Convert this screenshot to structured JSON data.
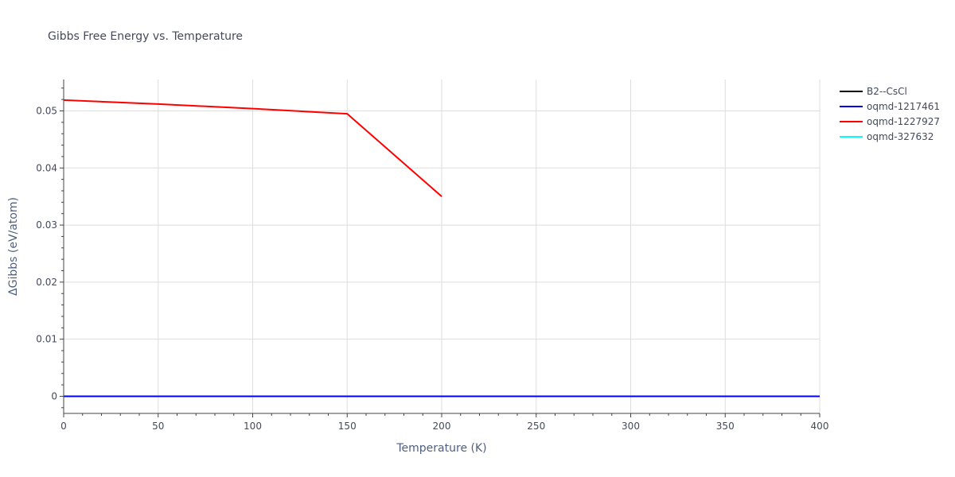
{
  "chart_data": {
    "type": "line",
    "title": "Gibbs Free Energy vs. Temperature",
    "xlabel": "Temperature (K)",
    "ylabel": "ΔGibbs (eV/atom)",
    "xlim": [
      0,
      400
    ],
    "ylim": [
      -0.003,
      0.0555
    ],
    "x_ticks": [
      0,
      50,
      100,
      150,
      200,
      250,
      300,
      350,
      400
    ],
    "y_ticks": [
      0,
      0.01,
      0.02,
      0.03,
      0.04,
      0.05
    ],
    "grid": true,
    "legend_position": "top-right",
    "series": [
      {
        "name": "B2--CsCl",
        "color": "#000000",
        "x": [
          0,
          400
        ],
        "y": [
          0,
          0
        ]
      },
      {
        "name": "oqmd-1217461",
        "color": "#0000ff",
        "x": [
          0,
          400
        ],
        "y": [
          0,
          0
        ]
      },
      {
        "name": "oqmd-1227927",
        "color": "#ff0000",
        "x": [
          0,
          50,
          100,
          150,
          200
        ],
        "y": [
          0.0519,
          0.0512,
          0.0504,
          0.0495,
          0.035
        ]
      },
      {
        "name": "oqmd-327632",
        "color": "#00ffff",
        "x": [],
        "y": []
      }
    ]
  }
}
